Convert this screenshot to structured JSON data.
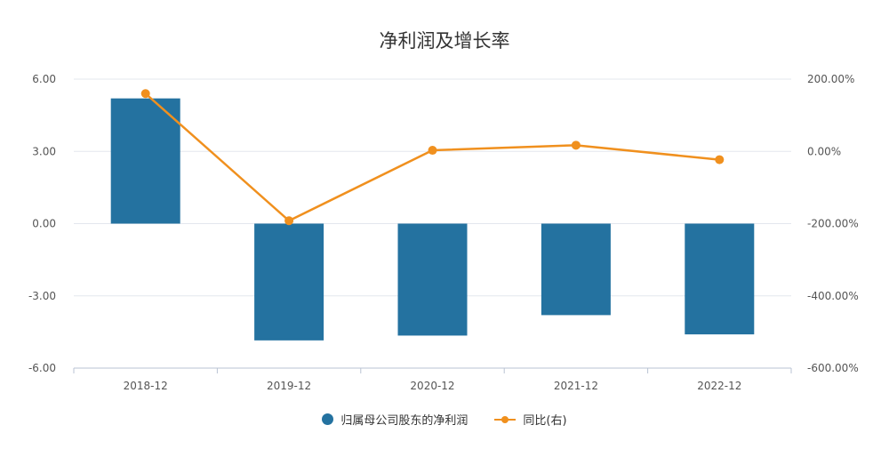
{
  "colors": {
    "bar": "#2472a0",
    "line": "#f0901e",
    "grid": "#e3e7ee",
    "axis": "#b9c3d3"
  },
  "chart_data": {
    "type": "bar",
    "title": "净利润及增长率",
    "categories": [
      "2018-12",
      "2019-12",
      "2020-12",
      "2021-12",
      "2022-12"
    ],
    "series": [
      {
        "name": "归属母公司股东的净利润",
        "type": "bar",
        "axis": "left",
        "values": [
          5.2,
          -4.85,
          -4.65,
          -3.8,
          -4.6
        ]
      },
      {
        "name": "同比(右)",
        "type": "line",
        "axis": "right",
        "values": [
          160,
          -192,
          3,
          17,
          -23
        ]
      }
    ],
    "left_axis": {
      "ylim": [
        -6,
        6
      ],
      "ticks": [
        "6.00",
        "3.00",
        "0.00",
        "-3.00",
        "-6.00"
      ]
    },
    "right_axis": {
      "ylim": [
        -600,
        200
      ],
      "ticks": [
        "200.00%",
        "0.00%",
        "-200.00%",
        "-400.00%",
        "-600.00%"
      ]
    },
    "grid": true,
    "legend_position": "bottom"
  }
}
